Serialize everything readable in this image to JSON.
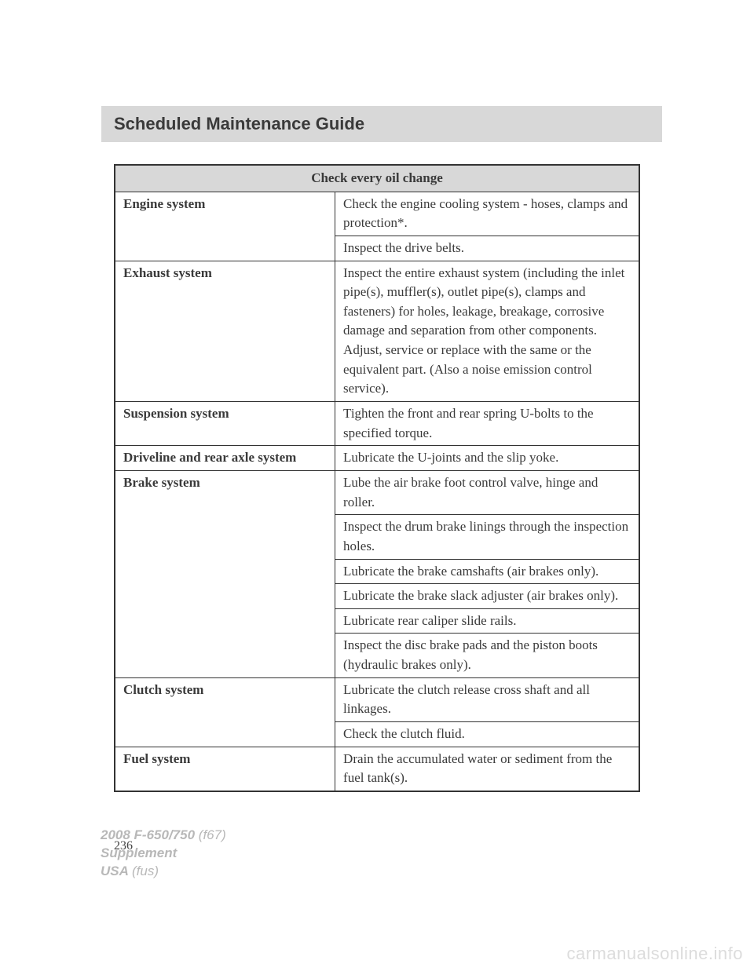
{
  "header": {
    "title": "Scheduled Maintenance Guide"
  },
  "table": {
    "caption": "Check every oil change",
    "rows": [
      {
        "system": "Engine system",
        "items": [
          "Check the engine cooling system - hoses, clamps and protection*.",
          "Inspect the drive belts."
        ]
      },
      {
        "system": "Exhaust system",
        "items": [
          "Inspect the entire exhaust system (including the inlet pipe(s), muffler(s), outlet pipe(s), clamps and fasteners) for holes, leakage, breakage, corrosive damage and separation from other components. Adjust, service or replace with the same or the equivalent part. (Also a noise emission control service)."
        ]
      },
      {
        "system": "Suspension system",
        "items": [
          "Tighten the front and rear spring U-bolts to the specified torque."
        ]
      },
      {
        "system": "Driveline and rear axle system",
        "items": [
          "Lubricate the U-joints and the slip yoke."
        ]
      },
      {
        "system": "Brake system",
        "items": [
          "Lube the air brake foot control valve, hinge and roller.",
          "Inspect the drum brake linings through the inspection holes.",
          "Lubricate the brake camshafts (air brakes only).",
          "Lubricate the brake slack adjuster (air brakes only).",
          "Lubricate rear caliper slide rails.",
          "Inspect the disc brake pads and the piston boots (hydraulic brakes only)."
        ]
      },
      {
        "system": "Clutch system",
        "items": [
          "Lubricate the clutch release cross shaft and all linkages.",
          "Check the clutch fluid."
        ]
      },
      {
        "system": "Fuel system",
        "items": [
          "Drain the accumulated water or sediment from the fuel tank(s)."
        ]
      }
    ]
  },
  "page_number": "236",
  "footer": {
    "line1a": "2008 F-650/750",
    "line1b": "(f67)",
    "line2": "Supplement",
    "line3a": "USA",
    "line3b": "(fus)"
  },
  "watermark": "carmanualsonline.info"
}
